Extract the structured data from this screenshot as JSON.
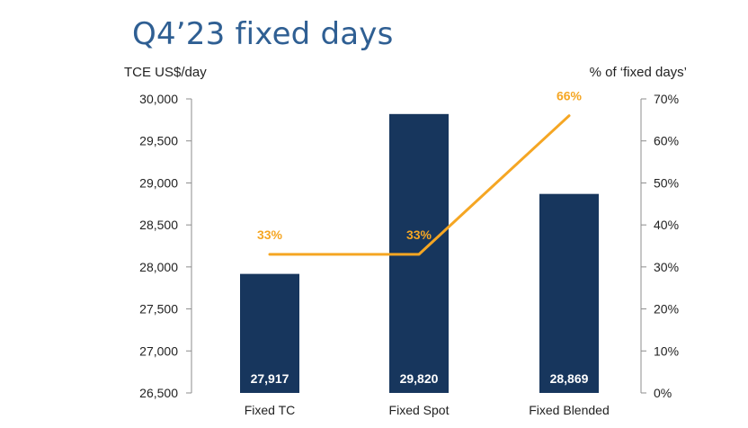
{
  "chart_data": {
    "type": "bar",
    "title": "Q4’23 fixed days",
    "ylabel_left": "TCE US$/day",
    "ylabel_right": "% of ‘fixed days’",
    "categories": [
      "Fixed TC",
      "Fixed Spot",
      "Fixed Blended"
    ],
    "series": [
      {
        "type": "bar",
        "axis": "left",
        "values": [
          27917,
          29820,
          28869
        ],
        "labels": [
          "27,917",
          "29,820",
          "28,869"
        ],
        "color": "#17365d"
      },
      {
        "type": "line",
        "axis": "right",
        "values": [
          33,
          33,
          66
        ],
        "labels": [
          "33%",
          "33%",
          "66%"
        ],
        "color": "#f5a623"
      }
    ],
    "ylim_left": [
      26500,
      30000
    ],
    "ylim_right": [
      0,
      70
    ],
    "yticks_left": [
      "30,000",
      "29,500",
      "29,000",
      "28,500",
      "28,000",
      "27,500",
      "27,000",
      "26,500"
    ],
    "yticks_right": [
      "70%",
      "60%",
      "50%",
      "40%",
      "30%",
      "20%",
      "10%",
      "0%"
    ],
    "grid": false
  }
}
